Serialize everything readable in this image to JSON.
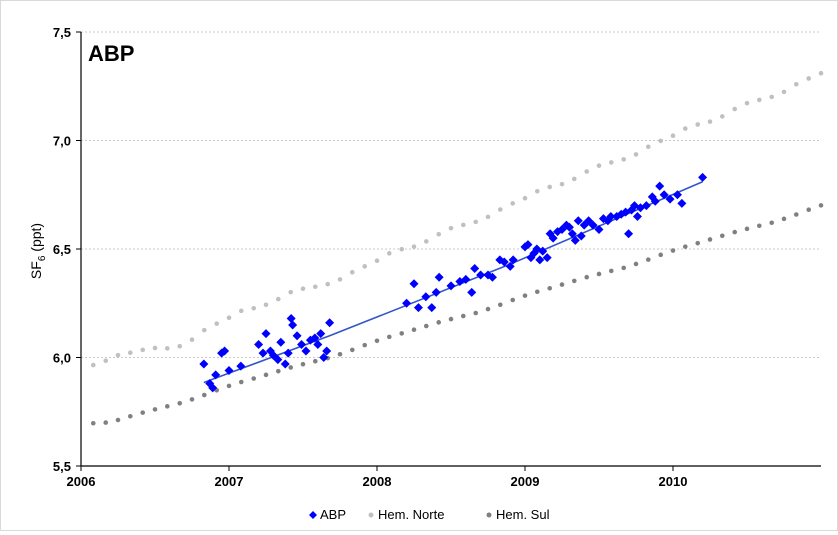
{
  "chart_data": {
    "type": "scatter",
    "title": "ABP",
    "ylabel": "SF",
    "ylabel_sub": "6",
    "ylabel_unit": " (ppt)",
    "xlim": [
      2006,
      2011
    ],
    "ylim": [
      5.5,
      7.5
    ],
    "grid": "horizontal dotted",
    "legend_position": "bottom",
    "x_ticks": [
      {
        "v": 2006,
        "label": "2006"
      },
      {
        "v": 2007,
        "label": "2007"
      },
      {
        "v": 2008,
        "label": "2008"
      },
      {
        "v": 2009,
        "label": "2009"
      },
      {
        "v": 2010,
        "label": "2010"
      }
    ],
    "y_ticks": [
      {
        "v": 5.5,
        "label": "5,5"
      },
      {
        "v": 6.0,
        "label": "6,0"
      },
      {
        "v": 6.5,
        "label": "6,5"
      },
      {
        "v": 7.0,
        "label": "7,0"
      },
      {
        "v": 7.5,
        "label": "7,5"
      }
    ],
    "series": [
      {
        "name": "ABP",
        "marker": "diamond",
        "color": "#0000ff",
        "points": [
          [
            2006.83,
            5.97
          ],
          [
            2006.87,
            5.88
          ],
          [
            2006.89,
            5.86
          ],
          [
            2006.91,
            5.92
          ],
          [
            2006.95,
            6.02
          ],
          [
            2006.97,
            6.03
          ],
          [
            2007.0,
            5.94
          ],
          [
            2007.08,
            5.96
          ],
          [
            2007.2,
            6.06
          ],
          [
            2007.23,
            6.02
          ],
          [
            2007.25,
            6.11
          ],
          [
            2007.28,
            6.03
          ],
          [
            2007.3,
            6.01
          ],
          [
            2007.33,
            5.99
          ],
          [
            2007.35,
            6.07
          ],
          [
            2007.38,
            5.97
          ],
          [
            2007.4,
            6.02
          ],
          [
            2007.42,
            6.18
          ],
          [
            2007.43,
            6.15
          ],
          [
            2007.46,
            6.1
          ],
          [
            2007.49,
            6.06
          ],
          [
            2007.52,
            6.03
          ],
          [
            2007.55,
            6.08
          ],
          [
            2007.58,
            6.09
          ],
          [
            2007.6,
            6.06
          ],
          [
            2007.62,
            6.11
          ],
          [
            2007.64,
            6.0
          ],
          [
            2007.66,
            6.03
          ],
          [
            2007.68,
            6.16
          ],
          [
            2008.2,
            6.25
          ],
          [
            2008.25,
            6.34
          ],
          [
            2008.28,
            6.23
          ],
          [
            2008.33,
            6.28
          ],
          [
            2008.37,
            6.23
          ],
          [
            2008.4,
            6.3
          ],
          [
            2008.42,
            6.37
          ],
          [
            2008.5,
            6.33
          ],
          [
            2008.56,
            6.35
          ],
          [
            2008.6,
            6.36
          ],
          [
            2008.64,
            6.3
          ],
          [
            2008.66,
            6.41
          ],
          [
            2008.7,
            6.38
          ],
          [
            2008.75,
            6.38
          ],
          [
            2008.78,
            6.37
          ],
          [
            2008.83,
            6.45
          ],
          [
            2008.86,
            6.44
          ],
          [
            2008.9,
            6.42
          ],
          [
            2008.92,
            6.45
          ],
          [
            2009.0,
            6.51
          ],
          [
            2009.02,
            6.52
          ],
          [
            2009.04,
            6.46
          ],
          [
            2009.06,
            6.48
          ],
          [
            2009.08,
            6.5
          ],
          [
            2009.1,
            6.45
          ],
          [
            2009.12,
            6.49
          ],
          [
            2009.15,
            6.46
          ],
          [
            2009.17,
            6.57
          ],
          [
            2009.19,
            6.55
          ],
          [
            2009.22,
            6.58
          ],
          [
            2009.25,
            6.59
          ],
          [
            2009.28,
            6.61
          ],
          [
            2009.3,
            6.6
          ],
          [
            2009.32,
            6.57
          ],
          [
            2009.34,
            6.54
          ],
          [
            2009.36,
            6.63
          ],
          [
            2009.38,
            6.56
          ],
          [
            2009.4,
            6.61
          ],
          [
            2009.43,
            6.63
          ],
          [
            2009.46,
            6.61
          ],
          [
            2009.5,
            6.59
          ],
          [
            2009.53,
            6.64
          ],
          [
            2009.56,
            6.63
          ],
          [
            2009.58,
            6.65
          ],
          [
            2009.62,
            6.65
          ],
          [
            2009.65,
            6.66
          ],
          [
            2009.68,
            6.67
          ],
          [
            2009.7,
            6.57
          ],
          [
            2009.72,
            6.68
          ],
          [
            2009.74,
            6.7
          ],
          [
            2009.76,
            6.65
          ],
          [
            2009.78,
            6.69
          ],
          [
            2009.82,
            6.7
          ],
          [
            2009.86,
            6.74
          ],
          [
            2009.88,
            6.72
          ],
          [
            2009.91,
            6.79
          ],
          [
            2009.94,
            6.75
          ],
          [
            2009.98,
            6.73
          ],
          [
            2010.03,
            6.75
          ],
          [
            2010.06,
            6.71
          ],
          [
            2010.2,
            6.83
          ]
        ]
      },
      {
        "name": "Hem. Norte",
        "marker": "circle",
        "color": "#c0c0c0",
        "points": [
          [
            2006.083,
            5.965
          ],
          [
            2006.167,
            5.985
          ],
          [
            2006.25,
            6.011
          ],
          [
            2006.333,
            6.022
          ],
          [
            2006.417,
            6.035
          ],
          [
            2006.5,
            6.044
          ],
          [
            2006.583,
            6.042
          ],
          [
            2006.667,
            6.052
          ],
          [
            2006.75,
            6.082
          ],
          [
            2006.833,
            6.126
          ],
          [
            2006.917,
            6.156
          ],
          [
            2007.0,
            6.183
          ],
          [
            2007.083,
            6.215
          ],
          [
            2007.167,
            6.227
          ],
          [
            2007.25,
            6.243
          ],
          [
            2007.333,
            6.269
          ],
          [
            2007.417,
            6.301
          ],
          [
            2007.5,
            6.317
          ],
          [
            2007.583,
            6.326
          ],
          [
            2007.667,
            6.338
          ],
          [
            2007.75,
            6.36
          ],
          [
            2007.833,
            6.393
          ],
          [
            2007.917,
            6.42
          ],
          [
            2008.0,
            6.446
          ],
          [
            2008.083,
            6.48
          ],
          [
            2008.167,
            6.499
          ],
          [
            2008.25,
            6.511
          ],
          [
            2008.333,
            6.535
          ],
          [
            2008.417,
            6.568
          ],
          [
            2008.5,
            6.596
          ],
          [
            2008.583,
            6.611
          ],
          [
            2008.667,
            6.625
          ],
          [
            2008.75,
            6.648
          ],
          [
            2008.833,
            6.682
          ],
          [
            2008.917,
            6.71
          ],
          [
            2009.0,
            6.734
          ],
          [
            2009.083,
            6.766
          ],
          [
            2009.167,
            6.786
          ],
          [
            2009.25,
            6.799
          ],
          [
            2009.333,
            6.823
          ],
          [
            2009.417,
            6.857
          ],
          [
            2009.5,
            6.884
          ],
          [
            2009.583,
            6.899
          ],
          [
            2009.667,
            6.913
          ],
          [
            2009.75,
            6.936
          ],
          [
            2009.833,
            6.971
          ],
          [
            2009.917,
            6.998
          ],
          [
            2010.0,
            7.022
          ],
          [
            2010.083,
            7.055
          ],
          [
            2010.167,
            7.074
          ],
          [
            2010.25,
            7.087
          ],
          [
            2010.333,
            7.111
          ],
          [
            2010.417,
            7.145
          ],
          [
            2010.5,
            7.172
          ],
          [
            2010.583,
            7.187
          ],
          [
            2010.667,
            7.201
          ],
          [
            2010.75,
            7.224
          ],
          [
            2010.833,
            7.259
          ],
          [
            2010.917,
            7.286
          ],
          [
            2011.0,
            7.31
          ]
        ]
      },
      {
        "name": "Hem. Sul",
        "marker": "circle",
        "color": "#808080",
        "points": [
          [
            2006.083,
            5.697
          ],
          [
            2006.167,
            5.7
          ],
          [
            2006.25,
            5.712
          ],
          [
            2006.333,
            5.729
          ],
          [
            2006.417,
            5.746
          ],
          [
            2006.5,
            5.761
          ],
          [
            2006.583,
            5.775
          ],
          [
            2006.667,
            5.789
          ],
          [
            2006.75,
            5.807
          ],
          [
            2006.833,
            5.827
          ],
          [
            2006.917,
            5.849
          ],
          [
            2007.0,
            5.869
          ],
          [
            2007.083,
            5.887
          ],
          [
            2007.167,
            5.903
          ],
          [
            2007.25,
            5.92
          ],
          [
            2007.333,
            5.937
          ],
          [
            2007.417,
            5.954
          ],
          [
            2007.5,
            5.969
          ],
          [
            2007.583,
            5.983
          ],
          [
            2007.667,
            5.997
          ],
          [
            2007.75,
            6.015
          ],
          [
            2007.833,
            6.035
          ],
          [
            2007.917,
            6.057
          ],
          [
            2008.0,
            6.077
          ],
          [
            2008.083,
            6.095
          ],
          [
            2008.167,
            6.111
          ],
          [
            2008.25,
            6.128
          ],
          [
            2008.333,
            6.145
          ],
          [
            2008.417,
            6.162
          ],
          [
            2008.5,
            6.177
          ],
          [
            2008.583,
            6.191
          ],
          [
            2008.667,
            6.205
          ],
          [
            2008.75,
            6.223
          ],
          [
            2008.833,
            6.243
          ],
          [
            2008.917,
            6.265
          ],
          [
            2009.0,
            6.285
          ],
          [
            2009.083,
            6.303
          ],
          [
            2009.167,
            6.319
          ],
          [
            2009.25,
            6.336
          ],
          [
            2009.333,
            6.353
          ],
          [
            2009.417,
            6.37
          ],
          [
            2009.5,
            6.385
          ],
          [
            2009.583,
            6.399
          ],
          [
            2009.667,
            6.413
          ],
          [
            2009.75,
            6.431
          ],
          [
            2009.833,
            6.451
          ],
          [
            2009.917,
            6.473
          ],
          [
            2010.0,
            6.493
          ],
          [
            2010.083,
            6.511
          ],
          [
            2010.167,
            6.527
          ],
          [
            2010.25,
            6.544
          ],
          [
            2010.333,
            6.561
          ],
          [
            2010.417,
            6.578
          ],
          [
            2010.5,
            6.593
          ],
          [
            2010.583,
            6.607
          ],
          [
            2010.667,
            6.621
          ],
          [
            2010.75,
            6.639
          ],
          [
            2010.833,
            6.659
          ],
          [
            2010.917,
            6.681
          ],
          [
            2011.0,
            6.701
          ]
        ]
      }
    ],
    "trend_line": {
      "color": "#3355cc",
      "points": [
        [
          2006.83,
          5.885
        ],
        [
          2007.68,
          6.1
        ],
        [
          2008.9,
          6.43
        ],
        [
          2010.2,
          6.81
        ]
      ]
    }
  }
}
